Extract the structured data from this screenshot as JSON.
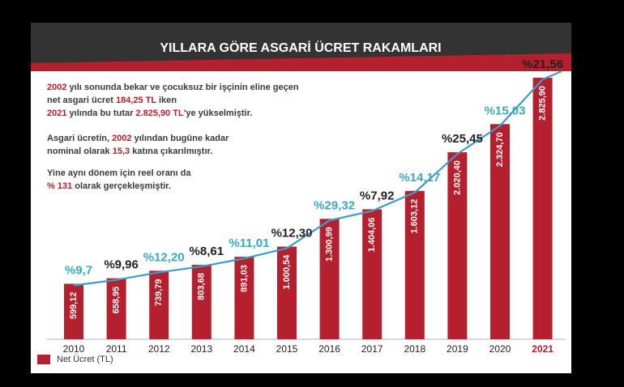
{
  "chart_data": {
    "type": "bar",
    "title": "YILLARA GÖRE ASGARİ ÜCRET RAKAMLARI",
    "categories": [
      "2010",
      "2011",
      "2012",
      "2013",
      "2014",
      "2015",
      "2016",
      "2017",
      "2018",
      "2019",
      "2020",
      "2021"
    ],
    "series": [
      {
        "name": "Net Ücret (TL)",
        "values": [
          599.12,
          658.95,
          739.79,
          803.68,
          891.03,
          1000.54,
          1300.99,
          1404.06,
          1603.12,
          2020.4,
          2324.7,
          2825.9
        ]
      }
    ],
    "value_labels": [
      "599,12",
      "658,95",
      "739,79",
      "803,68",
      "891,03",
      "1.000,54",
      "1.300,99",
      "1.404,06",
      "1.603,12",
      "2.020,40",
      "2.324,70",
      "2.825,90"
    ],
    "line_series": {
      "values": [
        9.7,
        9.96,
        12.2,
        8.61,
        11.01,
        12.3,
        29.32,
        7.92,
        14.17,
        25.45,
        15.03,
        21.56
      ],
      "labels": [
        "%9,7",
        "%9,96",
        "%12,20",
        "%8,61",
        "%11,01",
        "%12,30",
        "%29,32",
        "%7,92",
        "%14,17",
        "%25,45",
        "%15,03",
        "%21,56"
      ]
    },
    "highlight_category": "2021",
    "legend": {
      "position": "bottom-left"
    }
  },
  "colors": {
    "bar": "#b5202e",
    "line": "#3b9dc6",
    "teal_label": "#3aa9c0",
    "dark_label": "#222222",
    "header_band": "#3a3a3a"
  },
  "notes": {
    "p1": {
      "l1_pre": "2002",
      "l1_post": " yılı sonunda bekar ve çocuksuz bir işçinin eline geçen",
      "l2_pre": "net asgari ücret ",
      "l2_hl": "184,25 TL",
      "l2_post": " iken",
      "l3_hl1": "2021",
      "l3_mid": " yılında bu tutar ",
      "l3_hl2": "2.825,90 TL",
      "l3_post": "'ye yükselmiştir."
    },
    "p2": {
      "l1_pre": "Asgari ücretin, ",
      "l1_hl": "2002",
      "l1_post": " yılından bugüne kadar",
      "l2_pre": "nominal olarak ",
      "l2_hl": "15,3",
      "l2_post": " katına çıkarılmıştır."
    },
    "p3": {
      "l1": "Yine aynı dönem için reel oranı da",
      "l2_hl": "% 131",
      "l2_post": " olarak gerçekleşmiştir."
    }
  }
}
